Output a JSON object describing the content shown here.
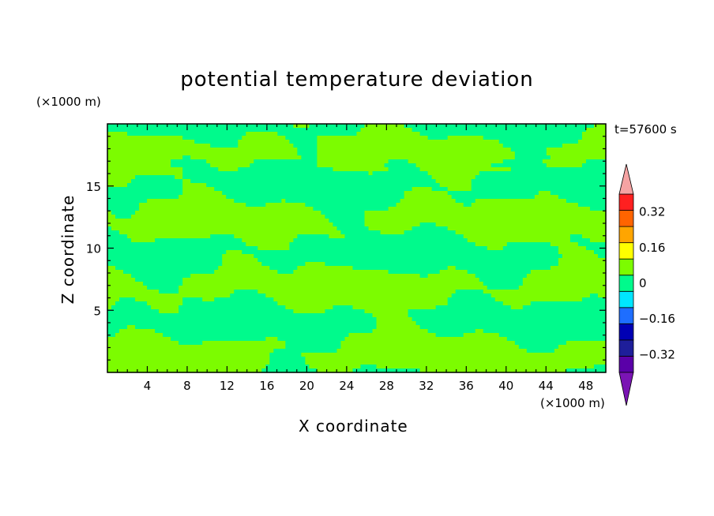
{
  "chart_data": {
    "type": "heatmap",
    "title": "potential temperature deviation",
    "xlabel": "X coordinate",
    "ylabel": "Z coordinate",
    "x_unit": "(×1000 m)",
    "y_unit": "(×1000 m)",
    "time_label": "t=57600 s",
    "xlim": [
      0,
      50
    ],
    "ylim": [
      0,
      20
    ],
    "x_ticks": [
      4,
      8,
      12,
      16,
      20,
      24,
      28,
      32,
      36,
      40,
      44,
      48
    ],
    "y_ticks": [
      5,
      10,
      15
    ],
    "colorbar": {
      "levels": [
        -0.4,
        -0.32,
        -0.24,
        -0.16,
        -0.08,
        0,
        0.08,
        0.16,
        0.24,
        0.32,
        0.4
      ],
      "labels": [
        "0.32",
        "0.16",
        "0",
        "−0.16",
        "−0.32"
      ],
      "label_values": [
        0.32,
        0.16,
        0,
        -0.16,
        -0.32
      ],
      "colors": [
        "#5a00a8",
        "#1e1e9a",
        "#0000b4",
        "#1e6eff",
        "#00e6ff",
        "#00fa8c",
        "#7cfc00",
        "#ffff00",
        "#ffa500",
        "#ff6400",
        "#ff2020"
      ],
      "extend_low_color": "#7a14b4",
      "extend_high_color": "#f5a3a3",
      "extend": "both"
    },
    "field_colors": {
      "negative": "#00fa8c",
      "positive": "#7cfc00"
    }
  }
}
